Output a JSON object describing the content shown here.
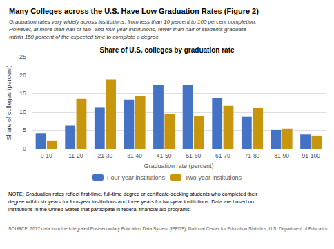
{
  "chart_data": {
    "type": "bar",
    "title": "Many Colleges across the U.S. Have Low Graduation Rates (Figure 2)",
    "subtitle": "Graduation rates vary widely across institutions, from less than 10 percent to 100 percent completion.\nHowever, at more than half of two- and four-year institutions, fewer than half of students graduate\nwithin 150 percent of the expected time to complete a degree.",
    "annotations": [
      "Share of U.S. colleges by graduation rate",
      "NOTE: Graduation rates reflect first-time, full-time degree or certificate-seeking students who completed their\ndegree within six years for four-year institutions and three years for two-year institutions. Data are based on\ninstitutions in the United States that participate in federal financial aid programs.",
      "SOURCE: 2017 data from the Integrated Postsecondary Education Data System (IPEDS), National Center for Education Statistics, U.S. Department of Education"
    ],
    "categories": [
      "0-10",
      "11-20",
      "21-30",
      "31-40",
      "41-50",
      "51-60",
      "61-70",
      "71-80",
      "81-90",
      "91-100"
    ],
    "series": [
      {
        "name": "Four-year institutions",
        "color": "#4472c4",
        "values": [
          4.1,
          6.3,
          11.2,
          13.4,
          17.3,
          17.3,
          13.7,
          8.7,
          5.1,
          3.9
        ]
      },
      {
        "name": "Two-year institutions",
        "color": "#c8960c",
        "values": [
          2.1,
          13.6,
          18.9,
          14.3,
          9.4,
          8.9,
          11.7,
          11.1,
          5.5,
          3.6
        ]
      }
    ],
    "xlabel": "Graduation rate (percent)",
    "ylabel": "Share of colleges (percent)",
    "ylim": [
      0,
      25
    ],
    "yticks": [
      0,
      5,
      10,
      15,
      20,
      25
    ],
    "grid": true,
    "legend": "bottom"
  }
}
